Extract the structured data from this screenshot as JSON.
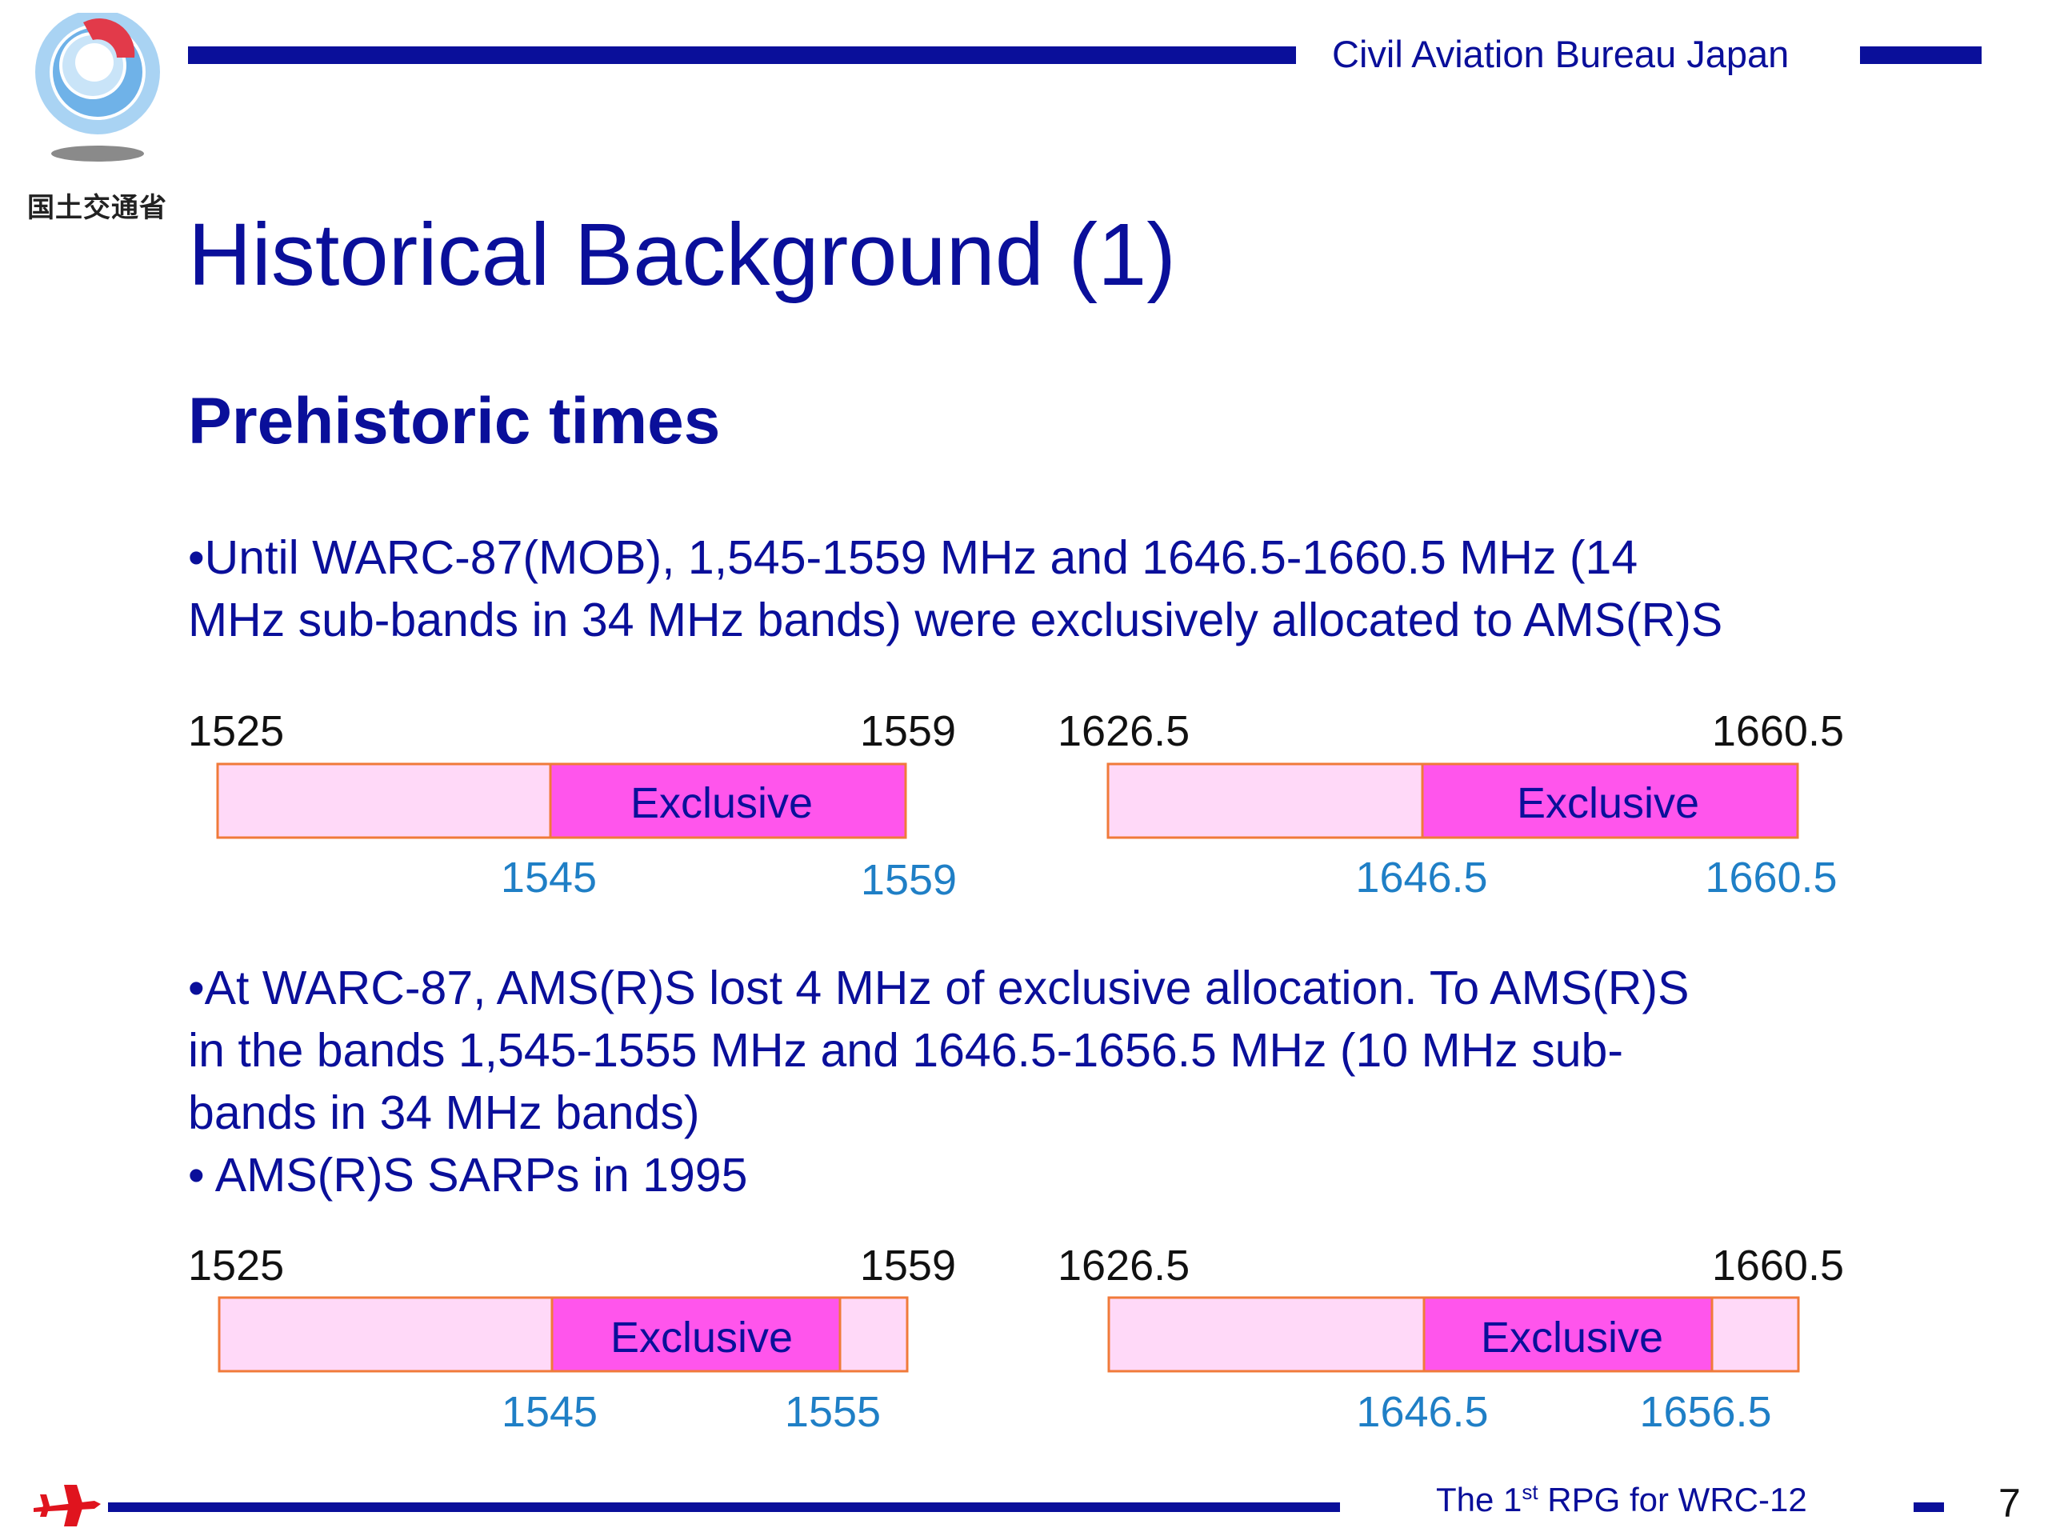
{
  "header": {
    "organization": "Civil Aviation Bureau Japan",
    "logo_caption": "国土交通省"
  },
  "slide": {
    "title": "Historical Background (1)",
    "subtitle": "Prehistoric times",
    "para1_lines": [
      "•Until WARC-87(MOB), 1,545-1559 MHz and 1646.5-1660.5 MHz (14",
      "MHz sub-bands in 34 MHz bands) were exclusively allocated to AMS(R)S"
    ],
    "para2_lines": [
      "•At WARC-87, AMS(R)S lost 4 MHz of exclusive allocation.  To AMS(R)S",
      "in the bands 1,545-1555 MHz and 1646.5-1656.5 MHz (10 MHz sub-",
      "bands in 34 MHz bands)",
      "• AMS(R)S SARPs in 1995"
    ]
  },
  "colors": {
    "navy": "#0a0f9a",
    "band_fill": "#ffd9f8",
    "exclusive_fill": "#ff55ec",
    "band_border": "#f07a3a",
    "tick_blue": "#1f7fc6",
    "footer_red": "#e0141e"
  },
  "bands": {
    "before_low": {
      "range_start": "1525",
      "range_end": "1559",
      "exclusive_label": "Exclusive",
      "exclusive_start": "1545",
      "exclusive_end": "1559"
    },
    "before_high": {
      "range_start": "1626.5",
      "range_end": "1660.5",
      "exclusive_label": "Exclusive",
      "exclusive_start": "1646.5",
      "exclusive_end": "1660.5"
    },
    "after_low": {
      "range_start": "1525",
      "range_end": "1559",
      "exclusive_label": "Exclusive",
      "exclusive_start": "1545",
      "exclusive_end": "1555"
    },
    "after_high": {
      "range_start": "1626.5",
      "range_end": "1660.5",
      "exclusive_label": "Exclusive",
      "exclusive_start": "1646.5",
      "exclusive_end": "1656.5"
    }
  },
  "footer": {
    "text_prefix": "The 1",
    "text_sup": "st",
    "text_suffix": " RPG for WRC-12",
    "page_number": "7"
  }
}
